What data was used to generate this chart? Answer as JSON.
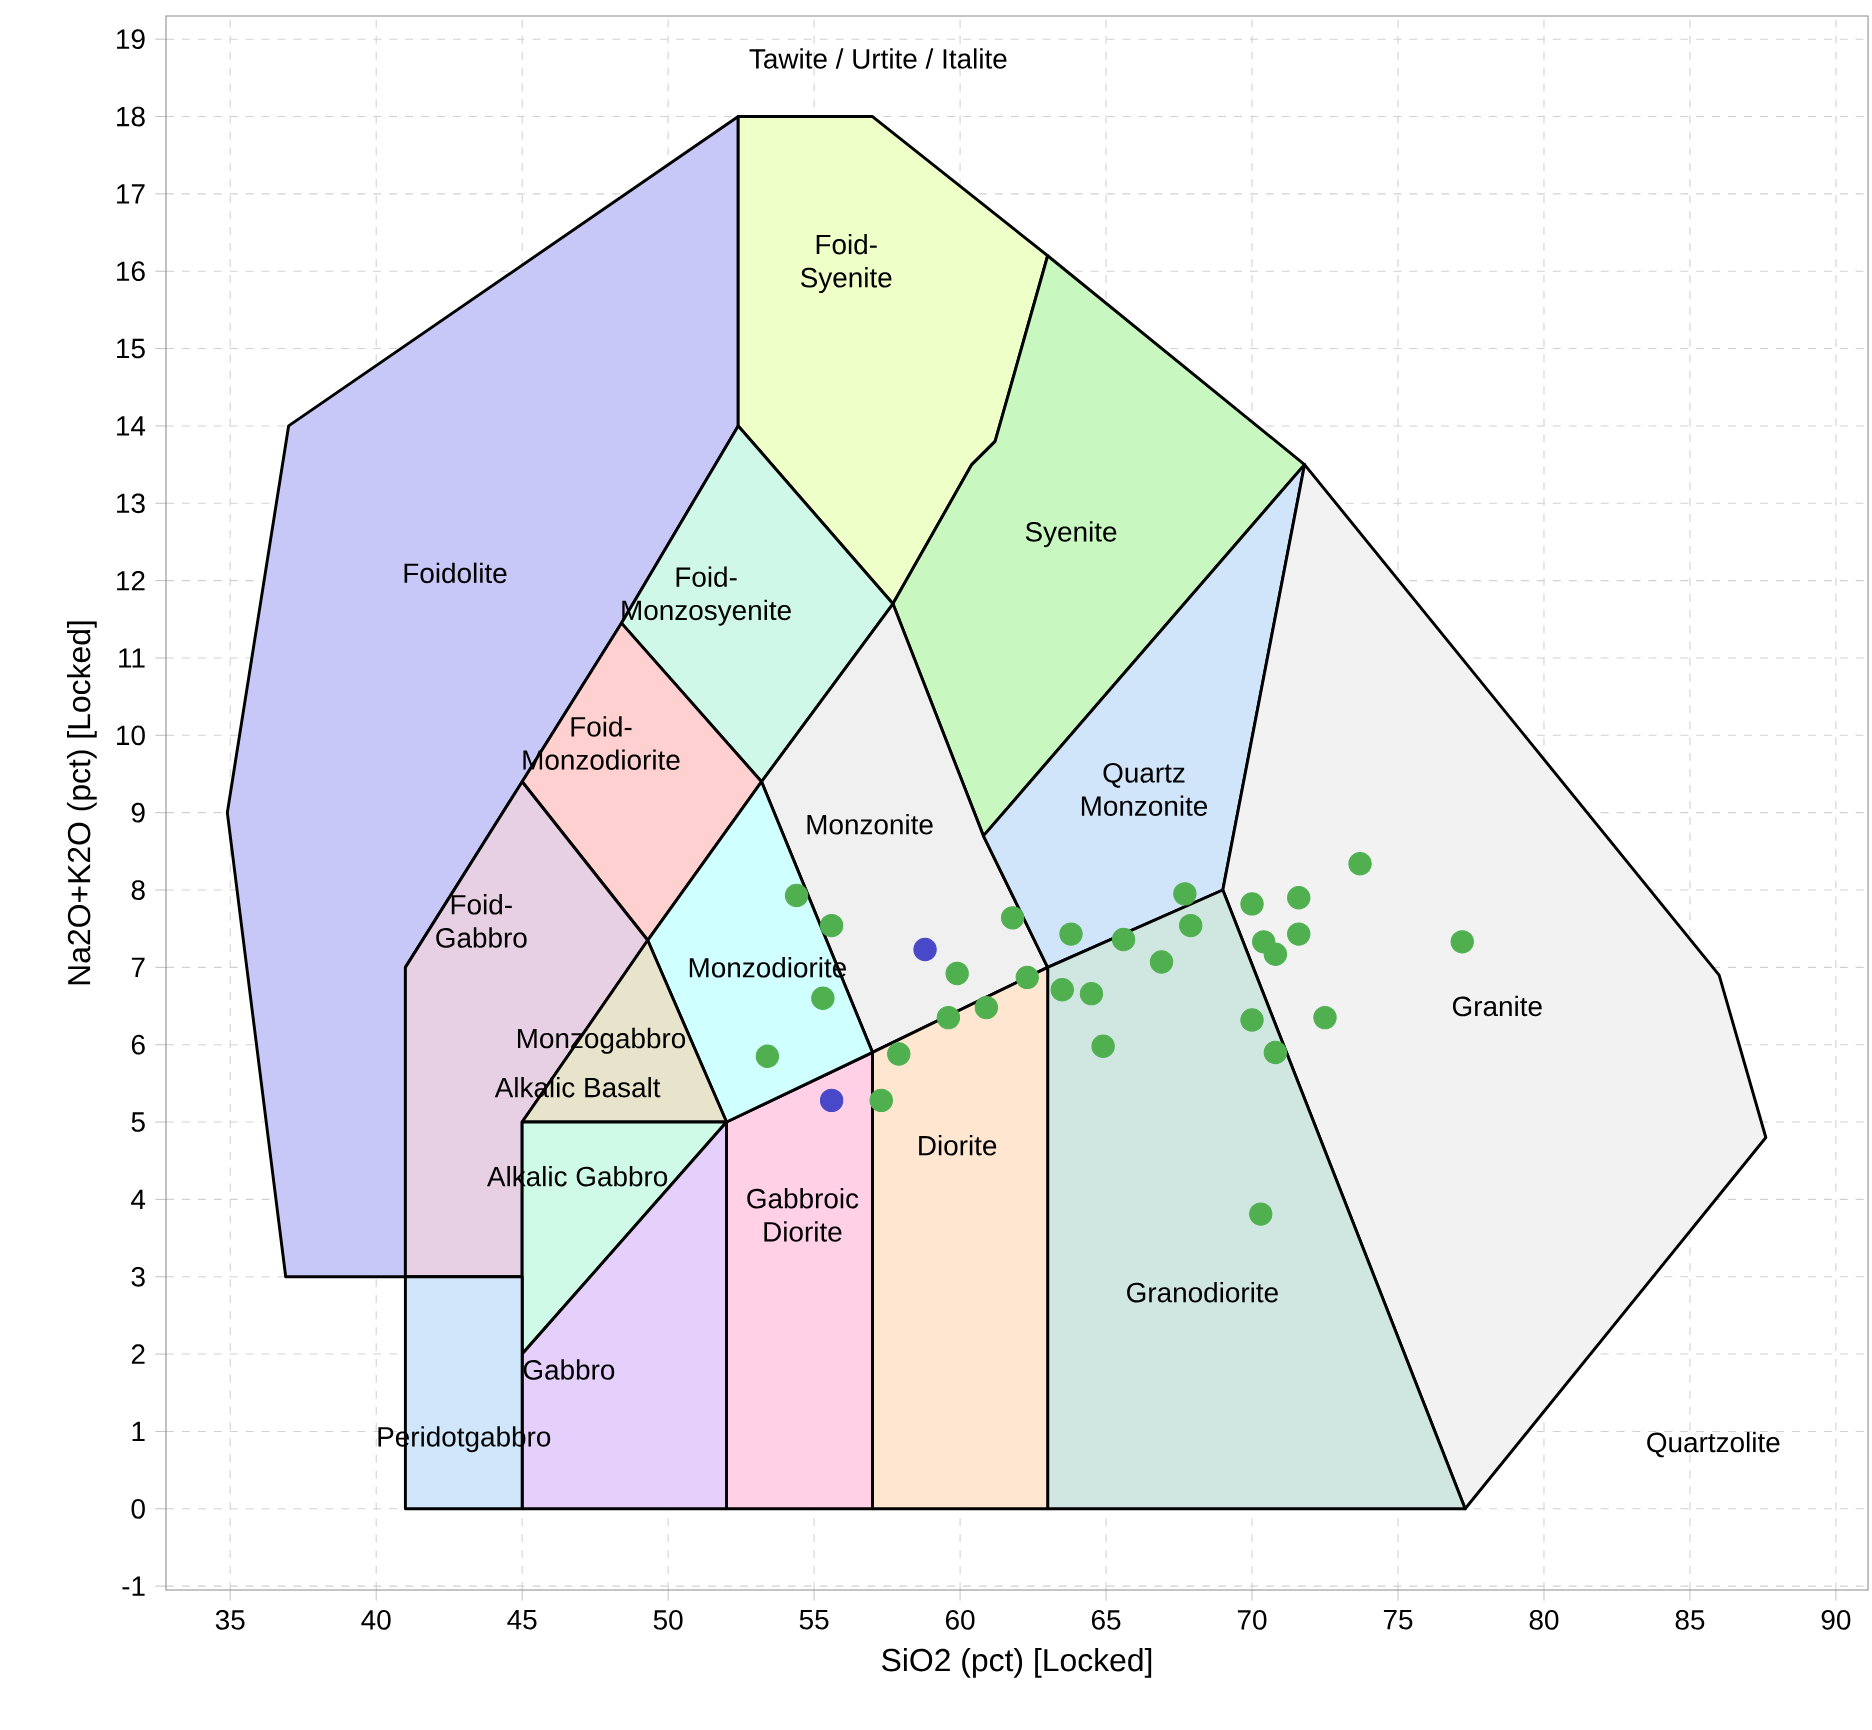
{
  "chart_data": {
    "type": "scatter",
    "xlabel": "SiO2 (pct) [Locked]",
    "ylabel": "Na2O+K2O (pct) [Locked]",
    "xlim": [
      32.8,
      91.1
    ],
    "ylim": [
      -1.05,
      19.3
    ],
    "xticks": [
      35,
      40,
      45,
      50,
      55,
      60,
      65,
      70,
      75,
      80,
      85,
      90
    ],
    "yticks": [
      -1,
      0,
      1,
      2,
      3,
      4,
      5,
      6,
      7,
      8,
      9,
      10,
      11,
      12,
      13,
      14,
      15,
      16,
      17,
      18,
      19
    ],
    "grid": true,
    "series": [
      {
        "type": "area",
        "color": "#c8c8f8",
        "x": [
          41,
          36.9,
          34.9,
          37,
          52.4,
          52.4,
          48.4,
          45,
          41
        ],
        "values": [
          3,
          3,
          9,
          14,
          18,
          14,
          11.45,
          9.4,
          7
        ]
      },
      {
        "type": "area",
        "color": "#eeffc8",
        "x": [
          52.4,
          52.4,
          57,
          63,
          61.2,
          60.4,
          57.7
        ],
        "values": [
          14,
          18,
          18,
          16.2,
          13.8,
          13.5,
          11.7
        ]
      },
      {
        "type": "area",
        "color": "#c8f8c0",
        "x": [
          57.7,
          60.4,
          61.2,
          63,
          71.8,
          60.8
        ],
        "values": [
          11.7,
          13.5,
          13.8,
          16.2,
          13.5,
          8.7
        ]
      },
      {
        "type": "area",
        "color": "#d0f8e8",
        "x": [
          48.4,
          52.4,
          57.7,
          53.2
        ],
        "values": [
          11.45,
          14,
          11.7,
          9.4
        ]
      },
      {
        "type": "area",
        "color": "#ffd0d0",
        "x": [
          45,
          48.4,
          53.2,
          49.3
        ],
        "values": [
          9.4,
          11.45,
          9.4,
          7.35
        ]
      },
      {
        "type": "area",
        "color": "#f0f0f0",
        "x": [
          53.2,
          57.7,
          60.8,
          63,
          57
        ],
        "values": [
          9.4,
          11.7,
          8.7,
          7,
          5.9
        ]
      },
      {
        "type": "area",
        "color": "#d0e4fa",
        "x": [
          60.8,
          71.8,
          69,
          63
        ],
        "values": [
          8.7,
          13.5,
          8,
          7
        ]
      },
      {
        "type": "area",
        "color": "#f2f2f2",
        "x": [
          69,
          71.8,
          86,
          87.6,
          77.3
        ],
        "values": [
          8,
          13.5,
          6.9,
          4.8,
          0
        ]
      },
      {
        "type": "area",
        "color": "#d0e6e0",
        "x": [
          63,
          63,
          69,
          77.3
        ],
        "values": [
          0,
          7,
          8,
          0
        ]
      },
      {
        "type": "area",
        "color": "#ffe6d0",
        "x": [
          57,
          57,
          63,
          63
        ],
        "values": [
          0,
          5.9,
          7,
          0
        ]
      },
      {
        "type": "area",
        "color": "#ffd0e6",
        "x": [
          52,
          52,
          57,
          57
        ],
        "values": [
          0,
          5,
          5.9,
          0
        ]
      },
      {
        "type": "area",
        "color": "#d0ffff",
        "x": [
          49.3,
          53.2,
          57,
          52
        ],
        "values": [
          7.35,
          9.4,
          5.9,
          5
        ]
      },
      {
        "type": "area",
        "color": "#e8d0e4",
        "x": [
          41,
          41,
          45,
          49.3,
          45,
          45
        ],
        "values": [
          3,
          7,
          9.4,
          7.35,
          5,
          3
        ]
      },
      {
        "type": "area",
        "color": "#e8e4cc",
        "x": [
          45,
          49.3,
          52
        ],
        "values": [
          5,
          7.35,
          5
        ]
      },
      {
        "type": "area",
        "color": "#d0fae8",
        "x": [
          45,
          52,
          45
        ],
        "values": [
          5,
          5,
          2
        ]
      },
      {
        "type": "area",
        "color": "#e4d0fa",
        "x": [
          45,
          45,
          52,
          52
        ],
        "values": [
          0,
          2,
          5,
          0
        ]
      },
      {
        "type": "area",
        "color": "#d0e6fa",
        "x": [
          41,
          41,
          45,
          45
        ],
        "values": [
          0,
          3,
          3,
          0
        ]
      },
      {
        "marker": "circle",
        "color": "#50b050",
        "x": [
          54.4,
          55.6,
          59.9,
          61.8,
          63.8,
          62.3,
          63.5,
          64.5,
          64.9,
          55.3,
          60.9,
          59.6,
          53.4,
          57.9,
          57.3,
          65.6,
          67.7,
          67.9,
          66.9,
          70.0,
          71.6,
          71.6,
          70.4,
          70.8,
          73.7,
          77.2,
          70.0,
          72.5,
          70.8,
          70.3
        ],
        "values": [
          7.93,
          7.54,
          6.92,
          7.64,
          7.43,
          6.87,
          6.71,
          6.66,
          5.98,
          6.6,
          6.48,
          6.35,
          5.85,
          5.88,
          5.28,
          7.36,
          7.95,
          7.54,
          7.07,
          7.82,
          7.9,
          7.43,
          7.33,
          7.17,
          8.34,
          7.33,
          6.32,
          6.35,
          5.9,
          3.81
        ]
      },
      {
        "marker": "circle",
        "color": "#4848c8",
        "x": [
          58.8,
          55.6
        ],
        "values": [
          7.23,
          5.28
        ]
      }
    ],
    "annotations": [
      "Tawite / Urtite / Italite",
      "Foidolite",
      "Foid-Syenite",
      "Syenite",
      "Foid-Monzosyenite",
      "Foid-Monzodiorite",
      "Quartz Monzonite",
      "Monzonite",
      "Foid-Gabbro",
      "Monzodiorite",
      "Monzogabbro",
      "Alkalic Basalt",
      "Alkalic Gabbro",
      "Diorite",
      "Gabbroic Diorite",
      "Gabbro",
      "Peridotgabbro",
      "Granodiorite",
      "Granite",
      "Quartzolite"
    ]
  }
}
